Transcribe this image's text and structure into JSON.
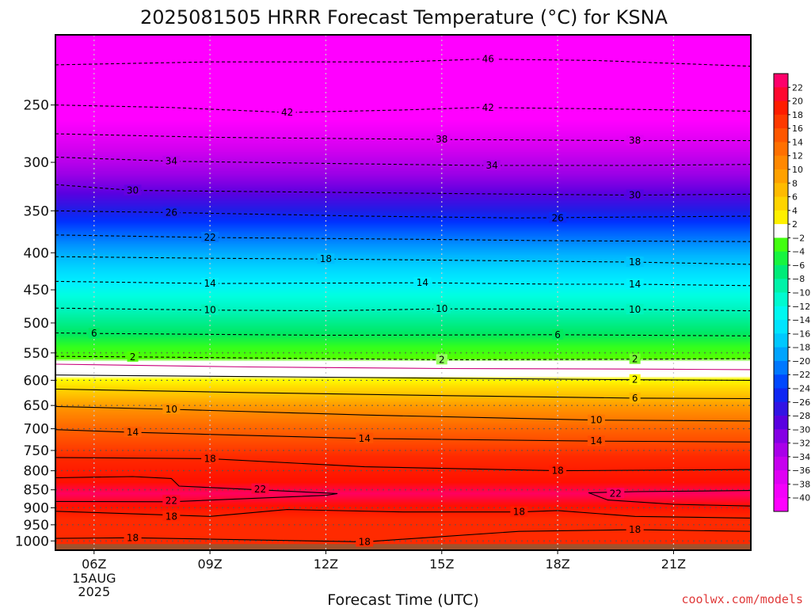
{
  "chart_data": {
    "type": "heatmap",
    "title": "2025081505 HRRR Forecast Temperature (°C) for KSNA",
    "xlabel": "Forecast Time (UTC)",
    "ylabel": "",
    "y_scale": "log-pressure",
    "ylim_hpa": [
      1030,
      200
    ],
    "xlim_hours_utc": [
      5,
      23
    ],
    "x_ticks": [
      {
        "hour": 6,
        "label": "06Z"
      },
      {
        "hour": 9,
        "label": "09Z"
      },
      {
        "hour": 12,
        "label": "12Z"
      },
      {
        "hour": 15,
        "label": "15Z"
      },
      {
        "hour": 18,
        "label": "18Z"
      },
      {
        "hour": 21,
        "label": "21Z"
      }
    ],
    "date_label": [
      "15AUG",
      "2025"
    ],
    "y_ticks": [
      250,
      300,
      350,
      400,
      450,
      500,
      550,
      600,
      650,
      700,
      750,
      800,
      850,
      900,
      950,
      1000
    ],
    "surface_pressure_hpa": 1010,
    "temperature_profile": [
      {
        "p": 205,
        "t": -50
      },
      {
        "p": 220,
        "t": -46
      },
      {
        "p": 250,
        "t": -42
      },
      {
        "p": 275,
        "t": -38
      },
      {
        "p": 300,
        "t": -34
      },
      {
        "p": 325,
        "t": -30
      },
      {
        "p": 350,
        "t": -26
      },
      {
        "p": 375,
        "t": -22
      },
      {
        "p": 405,
        "t": -18
      },
      {
        "p": 440,
        "t": -14
      },
      {
        "p": 478,
        "t": -10
      },
      {
        "p": 518,
        "t": -6
      },
      {
        "p": 560,
        "t": -2
      },
      {
        "p": 578,
        "t": 0
      },
      {
        "p": 598,
        "t": 2
      },
      {
        "p": 625,
        "t": 6
      },
      {
        "p": 655,
        "t": 10
      },
      {
        "p": 700,
        "t": 14
      },
      {
        "p": 765,
        "t": 18
      },
      {
        "p": 830,
        "t": 20
      },
      {
        "p": 860,
        "t": 22
      },
      {
        "p": 895,
        "t": 20
      },
      {
        "p": 935,
        "t": 18
      },
      {
        "p": 975,
        "t": 18
      },
      {
        "p": 1010,
        "t": 18
      }
    ],
    "contours": [
      {
        "value": -46,
        "dashed": true,
        "points": [
          [
            5,
            220
          ],
          [
            9,
            218
          ],
          [
            14,
            218
          ],
          [
            16,
            216
          ],
          [
            19,
            217
          ],
          [
            23,
            221
          ]
        ],
        "labels": [
          [
            16.2,
            216
          ]
        ]
      },
      {
        "value": -42,
        "dashed": true,
        "points": [
          [
            5,
            250
          ],
          [
            8,
            252
          ],
          [
            11,
            256
          ],
          [
            14,
            254
          ],
          [
            16,
            252
          ],
          [
            19,
            253
          ],
          [
            23,
            255
          ]
        ],
        "labels": [
          [
            11,
            256
          ],
          [
            16.2,
            252
          ]
        ]
      },
      {
        "value": -38,
        "dashed": true,
        "points": [
          [
            5,
            274
          ],
          [
            9,
            277
          ],
          [
            15,
            279
          ],
          [
            20,
            280
          ],
          [
            23,
            280
          ]
        ],
        "labels": [
          [
            15,
            279
          ],
          [
            20,
            280
          ]
        ]
      },
      {
        "value": -34,
        "dashed": true,
        "points": [
          [
            5,
            295
          ],
          [
            8,
            299
          ],
          [
            12,
            301
          ],
          [
            16,
            303
          ],
          [
            20,
            303
          ],
          [
            23,
            302
          ]
        ],
        "labels": [
          [
            8,
            299
          ],
          [
            16.3,
            303
          ]
        ]
      },
      {
        "value": -30,
        "dashed": true,
        "points": [
          [
            5,
            322
          ],
          [
            7,
            328
          ],
          [
            12,
            330
          ],
          [
            17,
            332
          ],
          [
            20,
            333
          ],
          [
            23,
            332
          ]
        ],
        "labels": [
          [
            7,
            328
          ],
          [
            20,
            333
          ]
        ]
      },
      {
        "value": -26,
        "dashed": true,
        "points": [
          [
            5,
            350
          ],
          [
            8,
            352
          ],
          [
            13,
            356
          ],
          [
            17,
            358
          ],
          [
            20,
            357
          ],
          [
            23,
            356
          ]
        ],
        "labels": [
          [
            8,
            352
          ],
          [
            18,
            358
          ]
        ]
      },
      {
        "value": -22,
        "dashed": true,
        "points": [
          [
            5,
            378
          ],
          [
            9,
            381
          ],
          [
            14,
            383
          ],
          [
            18,
            385
          ],
          [
            23,
            386
          ]
        ],
        "labels": [
          [
            9,
            381
          ]
        ]
      },
      {
        "value": -18,
        "dashed": true,
        "points": [
          [
            5,
            405
          ],
          [
            9,
            407
          ],
          [
            12,
            408
          ],
          [
            16,
            410
          ],
          [
            20,
            412
          ],
          [
            23,
            415
          ]
        ],
        "labels": [
          [
            12,
            408
          ],
          [
            20,
            412
          ]
        ]
      },
      {
        "value": -14,
        "dashed": true,
        "points": [
          [
            5,
            438
          ],
          [
            9,
            441
          ],
          [
            14.5,
            440
          ],
          [
            18,
            442
          ],
          [
            20,
            442
          ],
          [
            23,
            444
          ]
        ],
        "labels": [
          [
            9,
            441
          ],
          [
            14.5,
            440
          ],
          [
            20,
            442
          ]
        ]
      },
      {
        "value": -10,
        "dashed": true,
        "points": [
          [
            5,
            477
          ],
          [
            9,
            480
          ],
          [
            12,
            481
          ],
          [
            15,
            478
          ],
          [
            20,
            479
          ],
          [
            23,
            481
          ]
        ],
        "labels": [
          [
            9,
            480
          ],
          [
            15,
            478
          ],
          [
            20,
            479
          ]
        ]
      },
      {
        "value": -6,
        "dashed": true,
        "points": [
          [
            5,
            516
          ],
          [
            6,
            517
          ],
          [
            12,
            520
          ],
          [
            18,
            519
          ],
          [
            23,
            521
          ]
        ],
        "labels": [
          [
            6,
            517
          ],
          [
            18,
            519
          ]
        ]
      },
      {
        "value": -2,
        "dashed": true,
        "points": [
          [
            5,
            556
          ],
          [
            7,
            557
          ],
          [
            12,
            560
          ],
          [
            15,
            562
          ],
          [
            20,
            561
          ],
          [
            23,
            560
          ]
        ],
        "labels": [
          [
            7,
            557
          ],
          [
            15,
            562
          ],
          [
            20,
            561
          ]
        ]
      },
      {
        "value": 0,
        "dashed": false,
        "points": [
          [
            5,
            570
          ],
          [
            10,
            575
          ],
          [
            15,
            578
          ],
          [
            20,
            579
          ],
          [
            23,
            580
          ]
        ],
        "labels": []
      },
      {
        "value": 2,
        "dashed": false,
        "points": [
          [
            5,
            590
          ],
          [
            10,
            593
          ],
          [
            15,
            596
          ],
          [
            20,
            599
          ],
          [
            23,
            600
          ]
        ],
        "labels": [
          [
            20,
            599
          ]
        ]
      },
      {
        "value": 6,
        "dashed": false,
        "points": [
          [
            5,
            617
          ],
          [
            10,
            624
          ],
          [
            15,
            630
          ],
          [
            20,
            635
          ],
          [
            23,
            636
          ]
        ],
        "labels": [
          [
            20,
            635
          ]
        ]
      },
      {
        "value": 10,
        "dashed": false,
        "points": [
          [
            5,
            652
          ],
          [
            8,
            658
          ],
          [
            13,
            670
          ],
          [
            19,
            681
          ],
          [
            23,
            683
          ]
        ],
        "labels": [
          [
            8,
            658
          ],
          [
            19,
            681
          ]
        ]
      },
      {
        "value": 14,
        "dashed": false,
        "points": [
          [
            5,
            702
          ],
          [
            7,
            708
          ],
          [
            13,
            722
          ],
          [
            19,
            728
          ],
          [
            23,
            730
          ]
        ],
        "labels": [
          [
            7,
            708
          ],
          [
            13,
            722
          ],
          [
            19,
            728
          ]
        ]
      },
      {
        "value": 18,
        "dashed": false,
        "points": [
          [
            5,
            767
          ],
          [
            9,
            770
          ],
          [
            13,
            790
          ],
          [
            18,
            800
          ],
          [
            23,
            797
          ]
        ],
        "labels": [
          [
            9,
            770
          ],
          [
            18,
            800
          ]
        ]
      },
      {
        "value": 22,
        "dashed": false,
        "points": [
          [
            5,
            818
          ],
          [
            7,
            815
          ],
          [
            8,
            820
          ],
          [
            8.2,
            840
          ],
          [
            12.3,
            860
          ],
          [
            12,
            865
          ],
          [
            8,
            883
          ],
          [
            5,
            882
          ]
        ],
        "labels": [
          [
            10.3,
            848
          ],
          [
            8,
            880
          ]
        ]
      },
      {
        "value": 22,
        "dashed": false,
        "points": [
          [
            23,
            852
          ],
          [
            20,
            855
          ],
          [
            18.8,
            858
          ],
          [
            19.3,
            878
          ],
          [
            21,
            890
          ],
          [
            23,
            895
          ]
        ],
        "labels": [
          [
            19.5,
            860
          ]
        ]
      },
      {
        "value": 18,
        "dashed": false,
        "points": [
          [
            5,
            910
          ],
          [
            9,
            925
          ],
          [
            11,
            905
          ],
          [
            14,
            912
          ],
          [
            17,
            912
          ],
          [
            18,
            908
          ],
          [
            20,
            925
          ],
          [
            23,
            930
          ]
        ],
        "labels": [
          [
            8,
            925
          ],
          [
            17,
            912
          ]
        ]
      },
      {
        "value": 18,
        "dashed": false,
        "points": [
          [
            5,
            992
          ],
          [
            7,
            990
          ],
          [
            13,
            1003
          ],
          [
            17,
            970
          ],
          [
            20,
            965
          ],
          [
            23,
            970
          ]
        ],
        "labels": [
          [
            7,
            990
          ],
          [
            13,
            1003
          ],
          [
            20,
            965
          ]
        ]
      }
    ],
    "colorbar": {
      "labels": [
        "22",
        "20",
        "18",
        "16",
        "14",
        "12",
        "10",
        "8",
        "6",
        "4",
        "2",
        "−2",
        "−4",
        "−6",
        "−8",
        "−10",
        "−12",
        "−14",
        "−16",
        "−18",
        "−20",
        "−22",
        "−24",
        "−26",
        "−28",
        "−30",
        "−32",
        "−34",
        "−36",
        "−38",
        "−40"
      ]
    },
    "grid": true,
    "legend": "right",
    "credit": "coolwx.com/models"
  }
}
